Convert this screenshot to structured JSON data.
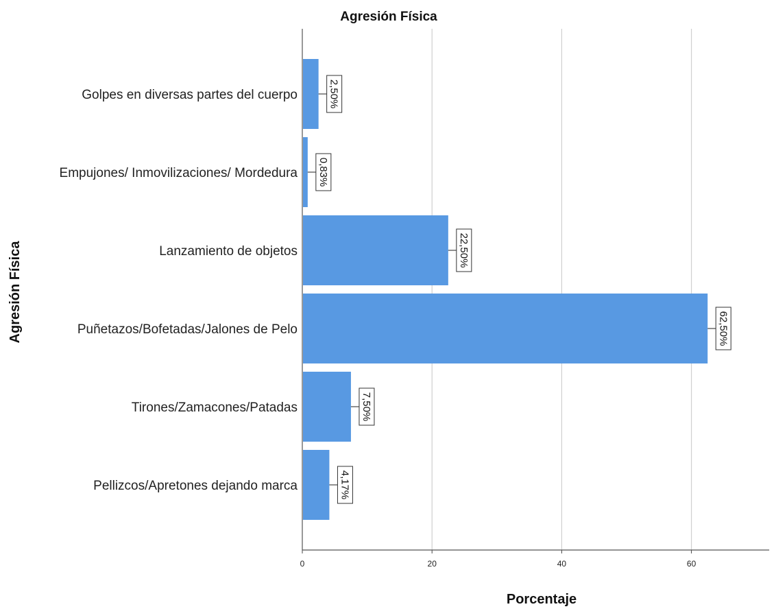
{
  "chart_data": {
    "type": "bar",
    "orientation": "horizontal",
    "title": "Agresión Física",
    "xlabel": "Porcentaje",
    "ylabel": "Agresión Física",
    "categories": [
      "Golpes en diversas partes del cuerpo",
      "Empujones/ Inmovilizaciones/ Mordedura",
      "Lanzamiento de objetos",
      "Puñetazos/Bofetadas/Jalones de Pelo",
      "Tirones/Zamacones/Patadas",
      "Pellizcos/Apretones dejando marca"
    ],
    "values": [
      2.5,
      0.83,
      22.5,
      62.5,
      7.5,
      4.17
    ],
    "data_labels": [
      "2,50%",
      "0,83%",
      "22,50%",
      "62,50%",
      "7,50%",
      "4,17%"
    ],
    "xlim": [
      0,
      72
    ],
    "x_ticks": [
      0,
      20,
      40,
      60
    ],
    "x_tick_labels": [
      "0",
      "20",
      "40",
      "60"
    ],
    "grid": "vertical",
    "bar_color": "#5899e2",
    "grid_color": "#cfcfcf"
  }
}
